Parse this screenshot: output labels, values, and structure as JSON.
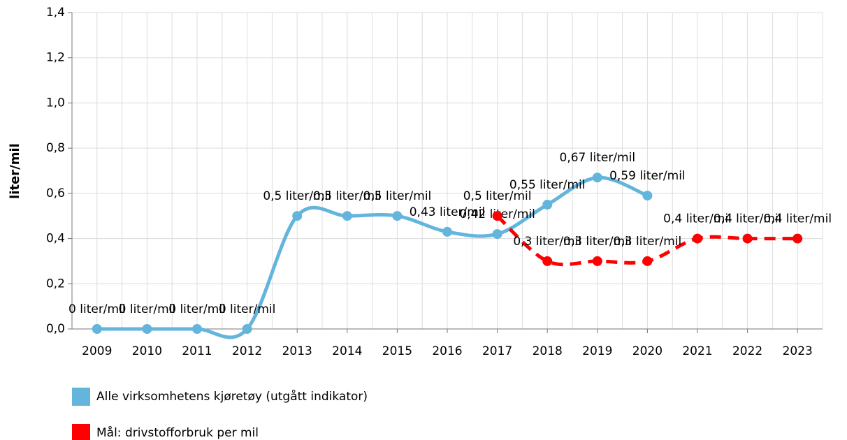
{
  "chart_data": {
    "type": "line",
    "y_label": "liter/mil",
    "categories": [
      "2009",
      "2010",
      "2011",
      "2012",
      "2013",
      "2014",
      "2015",
      "2016",
      "2017",
      "2018",
      "2019",
      "2020",
      "2021",
      "2022",
      "2023"
    ],
    "series": [
      {
        "name": "Alle virksomhetens kjøretøy (utgått indikator)",
        "color": "#63b5dc",
        "dashed": false,
        "values": [
          0,
          0,
          0,
          0,
          0.5,
          0.5,
          0.5,
          0.43,
          0.42,
          0.55,
          0.67,
          0.59,
          null,
          null,
          null
        ],
        "value_labels": [
          "0 liter/mil",
          "0 liter/mil",
          "0 liter/mil",
          "0 liter/mil",
          "0,5 liter/mil",
          "0,5 liter/mil",
          "0,5 liter/mil",
          "0,43 liter/mil",
          "0,42 liter/mil",
          "0,55 liter/mil",
          "0,67 liter/mil",
          "0,59 liter/mil",
          null,
          null,
          null
        ]
      },
      {
        "name": "Mål: drivstofforbruk per mil",
        "color": "#ff0000",
        "dashed": true,
        "values": [
          null,
          null,
          null,
          null,
          null,
          null,
          null,
          null,
          0.5,
          0.3,
          0.3,
          0.3,
          0.4,
          0.4,
          0.4
        ],
        "value_labels": [
          null,
          null,
          null,
          null,
          null,
          null,
          null,
          null,
          "0,5 liter/mil",
          "0,3 liter/mil",
          "0,3 liter/mil",
          "0,3 liter/mil",
          "0,4 liter/mil",
          "0,4 liter/mil",
          "0,4 liter/mil"
        ]
      }
    ],
    "ylim": [
      0,
      1.4
    ],
    "yticks": [
      {
        "value": 0,
        "label": "0,0"
      },
      {
        "value": 0.2,
        "label": "0,2"
      },
      {
        "value": 0.4,
        "label": "0,4"
      },
      {
        "value": 0.6,
        "label": "0,6"
      },
      {
        "value": 0.8,
        "label": "0,8"
      },
      {
        "value": 1.0,
        "label": "1,0"
      },
      {
        "value": 1.2,
        "label": "1,2"
      },
      {
        "value": 1.4,
        "label": "1,4"
      }
    ],
    "grid": true,
    "smooth": true
  }
}
